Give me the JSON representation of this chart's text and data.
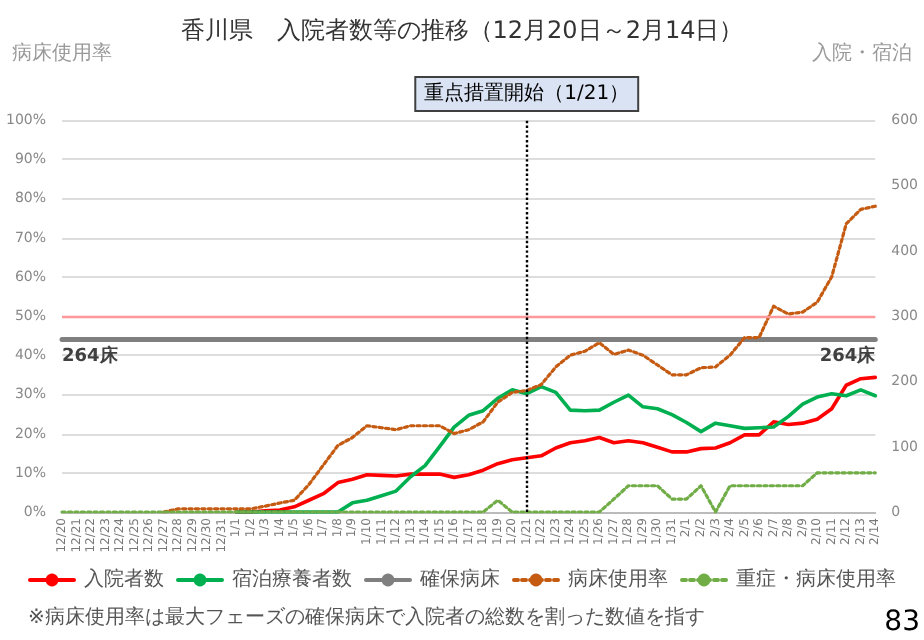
{
  "chart_data": {
    "type": "line",
    "title": "香川県　入院者数等の推移（12月20日～2月14日）",
    "ylabel": "病床使用率",
    "y2label": "入院・宿泊",
    "categories": [
      "12/20",
      "12/21",
      "12/22",
      "12/23",
      "12/24",
      "12/25",
      "12/26",
      "12/27",
      "12/28",
      "12/29",
      "12/30",
      "12/31",
      "1/1",
      "1/2",
      "1/3",
      "1/4",
      "1/5",
      "1/6",
      "1/7",
      "1/8",
      "1/9",
      "1/10",
      "1/11",
      "1/12",
      "1/13",
      "1/14",
      "1/15",
      "1/16",
      "1/17",
      "1/18",
      "1/19",
      "1/20",
      "1/21",
      "1/22",
      "1/23",
      "1/24",
      "1/25",
      "1/26",
      "1/27",
      "1/28",
      "1/29",
      "1/30",
      "1/31",
      "2/1",
      "2/2",
      "2/3",
      "2/4",
      "2/5",
      "2/6",
      "2/7",
      "2/8",
      "2/9",
      "2/10",
      "2/11",
      "2/12",
      "2/13",
      "2/14"
    ],
    "series": [
      {
        "name": "入院者数",
        "color": "#ff0000",
        "axis": "y2",
        "line_style": "solid",
        "values": [
          null,
          null,
          null,
          null,
          null,
          null,
          null,
          null,
          null,
          null,
          null,
          null,
          0,
          0,
          2,
          3,
          8,
          18,
          28,
          45,
          50,
          57,
          56,
          55,
          58,
          58,
          58,
          53,
          57,
          64,
          74,
          80,
          83,
          86,
          98,
          106,
          109,
          114,
          106,
          109,
          106,
          99,
          92,
          92,
          97,
          98,
          106,
          118,
          118,
          138,
          134,
          136,
          142,
          158,
          194,
          204,
          206
        ]
      },
      {
        "name": "宿泊療養者数",
        "color": "#00b050",
        "axis": "y2",
        "line_style": "solid",
        "values": [
          null,
          null,
          null,
          null,
          null,
          null,
          null,
          null,
          null,
          null,
          null,
          null,
          0,
          0,
          0,
          0,
          0,
          0,
          0,
          0,
          14,
          18,
          25,
          32,
          54,
          71,
          100,
          130,
          148,
          155,
          174,
          187,
          181,
          192,
          183,
          156,
          155,
          156,
          168,
          179,
          161,
          158,
          149,
          137,
          123,
          136,
          132,
          128,
          129,
          130,
          146,
          165,
          176,
          181,
          178,
          187,
          178
        ]
      },
      {
        "name": "確保病床",
        "color": "#7f7f7f",
        "axis": "y2",
        "line_style": "solid",
        "values": [
          264,
          264,
          264,
          264,
          264,
          264,
          264,
          264,
          264,
          264,
          264,
          264,
          264,
          264,
          264,
          264,
          264,
          264,
          264,
          264,
          264,
          264,
          264,
          264,
          264,
          264,
          264,
          264,
          264,
          264,
          264,
          264,
          264,
          264,
          264,
          264,
          264,
          264,
          264,
          264,
          264,
          264,
          264,
          264,
          264,
          264,
          264,
          264,
          264,
          264,
          264,
          264,
          264,
          264,
          264,
          264,
          264
        ],
        "value_labels": [
          "264床",
          null,
          null,
          null,
          null,
          null,
          null,
          null,
          null,
          null,
          null,
          null,
          null,
          null,
          null,
          null,
          null,
          null,
          null,
          null,
          null,
          null,
          null,
          null,
          null,
          null,
          null,
          null,
          null,
          null,
          null,
          null,
          null,
          null,
          null,
          null,
          null,
          null,
          null,
          null,
          null,
          null,
          null,
          null,
          null,
          null,
          null,
          null,
          null,
          null,
          null,
          null,
          null,
          null,
          null,
          null,
          "264床"
        ]
      },
      {
        "name": "病床使用率",
        "color": "#c55a11",
        "line_style": "dotted",
        "values": [
          null,
          null,
          null,
          null,
          null,
          null,
          null,
          0,
          0.8,
          0.8,
          0.8,
          0.8,
          0.8,
          0.8,
          1.5,
          2.3,
          3,
          7,
          12,
          17,
          19,
          22,
          21.5,
          21,
          22,
          22,
          22,
          20,
          21,
          23,
          28,
          30.5,
          31,
          32.5,
          37,
          40,
          41,
          43.2,
          40.2,
          41.3,
          40,
          37.5,
          35,
          35,
          36.8,
          37,
          40,
          44.5,
          44.5,
          52.5,
          50.5,
          51,
          53.5,
          60,
          73.5,
          77.2,
          78
        ]
      },
      {
        "name": "重症・病床使用率",
        "color": "#70ad47",
        "line_style": "dotted",
        "values": [
          0,
          0,
          0,
          0,
          0,
          0,
          0,
          0,
          0,
          0,
          0,
          0,
          0,
          0,
          0,
          0,
          0,
          0,
          0,
          0,
          0,
          0,
          0,
          0,
          0,
          0,
          0,
          0,
          0,
          0,
          3,
          0,
          0,
          0,
          0,
          0,
          0,
          0,
          3.3,
          6.7,
          6.7,
          6.7,
          3.3,
          3.3,
          6.7,
          0,
          6.7,
          6.7,
          6.7,
          6.7,
          6.7,
          6.7,
          10,
          10,
          10,
          10,
          10
        ]
      }
    ],
    "ylim": [
      0,
      100
    ],
    "yticks": [
      {
        "value": 0,
        "label": "0%"
      },
      {
        "value": 10,
        "label": "10%"
      },
      {
        "value": 20,
        "label": "20%"
      },
      {
        "value": 30,
        "label": "30%"
      },
      {
        "value": 40,
        "label": "40%"
      },
      {
        "value": 50,
        "label": "50%"
      },
      {
        "value": 60,
        "label": "60%"
      },
      {
        "value": 70,
        "label": "70%"
      },
      {
        "value": 80,
        "label": "80%"
      },
      {
        "value": 90,
        "label": "90%"
      },
      {
        "value": 100,
        "label": "100%"
      }
    ],
    "y2lim": [
      0,
      600
    ],
    "y2ticks": [
      0,
      100,
      200,
      300,
      400,
      500,
      600
    ],
    "ref_lines": [
      {
        "axis": "y",
        "value": 50,
        "label": null,
        "color": "#ff9999"
      },
      {
        "axis": "x",
        "value": "1/21",
        "label": "重点措置開始（1/21）",
        "color": "#000000",
        "line_style": "dotted"
      }
    ],
    "grid": "y",
    "legend": "bottom",
    "marker": "none",
    "annotations": [
      "※病床使用率は最大フェーズの確保病床で入院者の総数を割った数値を指す",
      "83"
    ]
  }
}
